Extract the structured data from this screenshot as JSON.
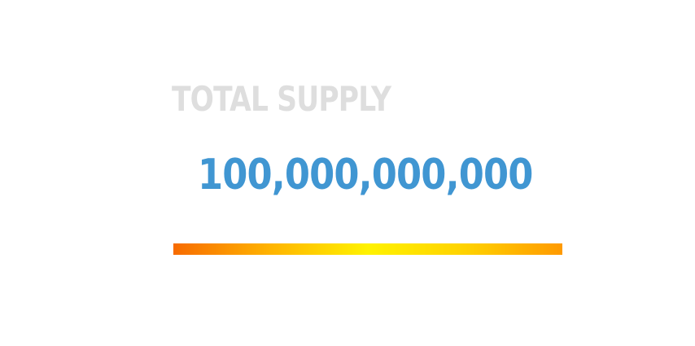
{
  "supply": {
    "title": "TOTAL SUPPLY",
    "value": "100,000,000,000"
  },
  "colors": {
    "title": "#dedede",
    "value": "#4096d2",
    "bar_gradient": [
      "#f76b00",
      "#ffb400",
      "#fff200",
      "#ffd200",
      "#ff9a00"
    ]
  }
}
